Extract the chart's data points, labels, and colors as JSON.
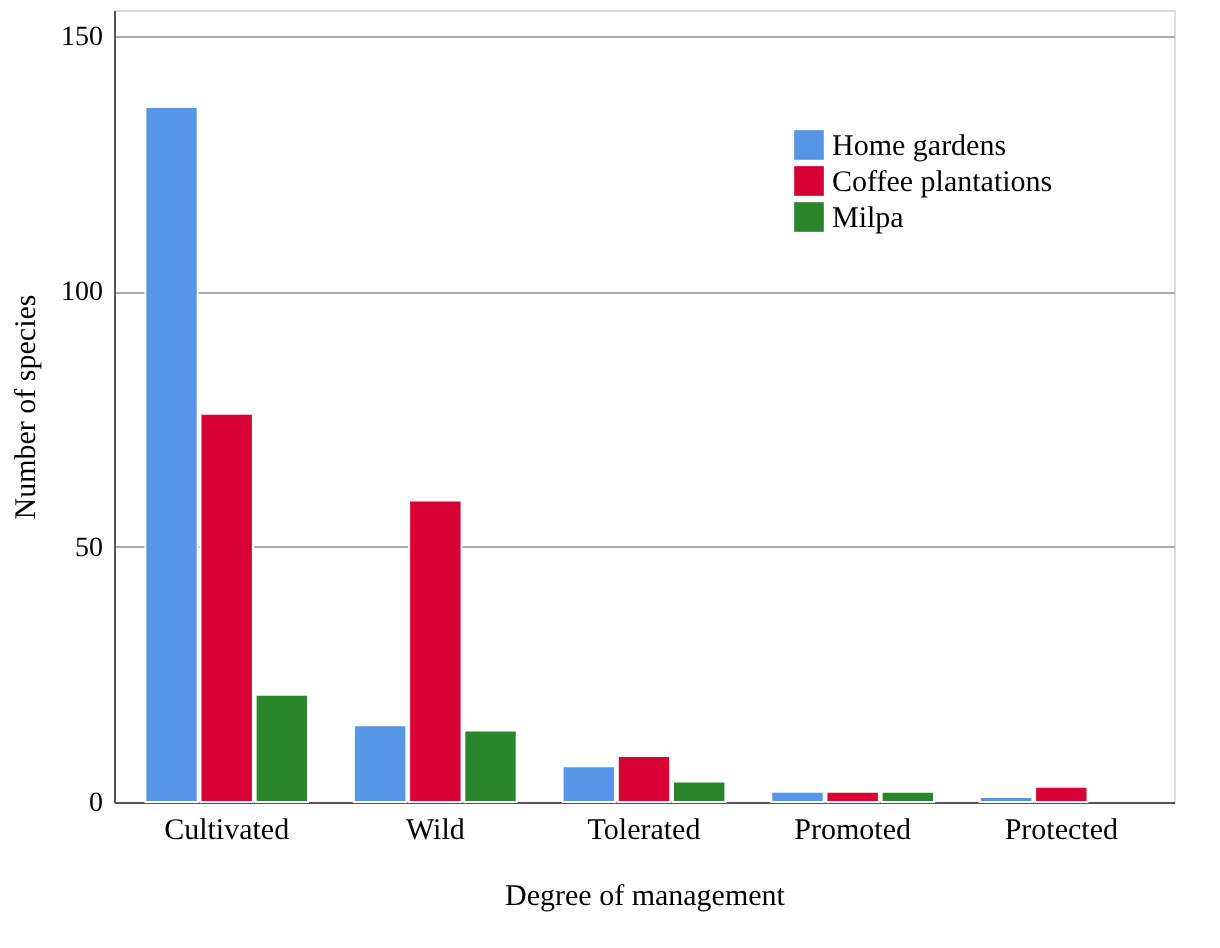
{
  "chart_data": {
    "type": "bar",
    "xlabel": "Degree of management",
    "ylabel": "Number of species",
    "categories": [
      "Cultivated",
      "Wild",
      "Tolerated",
      "Promoted",
      "Protected"
    ],
    "series": [
      {
        "name": "Home gardens",
        "color": "#5596e6",
        "values": [
          136,
          15,
          7,
          2,
          1
        ]
      },
      {
        "name": "Coffee plantations",
        "color": "#d60032",
        "values": [
          76,
          59,
          9,
          2,
          3
        ]
      },
      {
        "name": "Milpa",
        "color": "#2a862a",
        "values": [
          21,
          14,
          4,
          2,
          null
        ]
      }
    ],
    "ylim": [
      0,
      155
    ],
    "yticks": [
      0,
      50,
      100,
      150
    ],
    "grid": "y",
    "legend": "top right"
  }
}
